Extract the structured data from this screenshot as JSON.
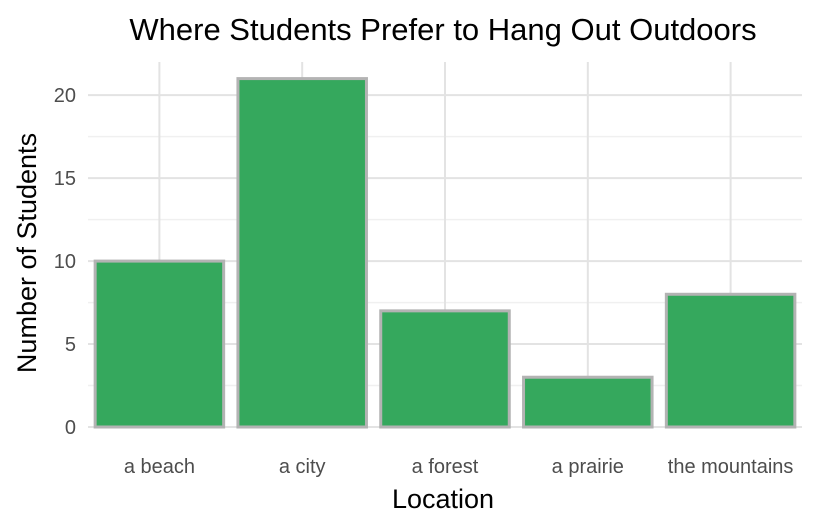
{
  "chart_data": {
    "type": "bar",
    "title": "Where Students Prefer to Hang Out Outdoors",
    "xlabel": "Location",
    "ylabel": "Number of Students",
    "categories": [
      "a beach",
      "a city",
      "a forest",
      "a prairie",
      "the mountains"
    ],
    "values": [
      10,
      21,
      7,
      3,
      8
    ],
    "ylim": [
      0,
      22
    ],
    "yticks": [
      0,
      5,
      10,
      15,
      20
    ],
    "grid": true,
    "legend": "none",
    "bar_color": "#35a85d",
    "bar_outline": "#b3b3b3"
  }
}
